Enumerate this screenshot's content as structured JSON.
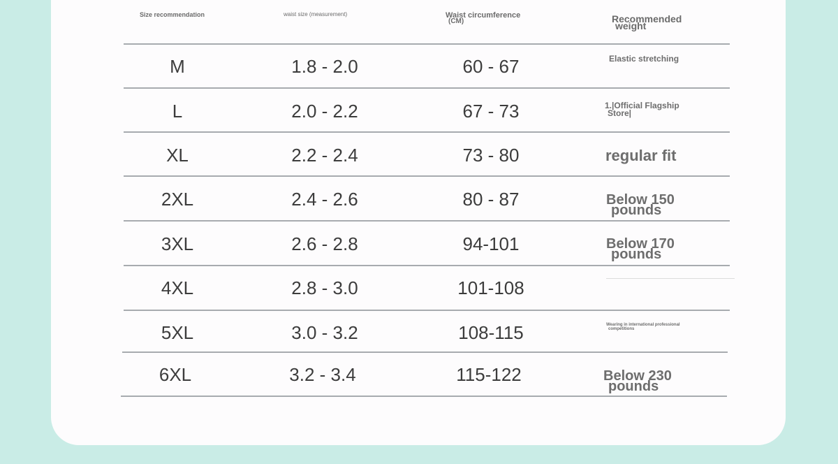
{
  "headers": {
    "size": "Size recommendation",
    "waist_measure": "waist size (measurement)",
    "circumference": "Waist circumference",
    "circumference_unit": "(CM)",
    "weight_line1": "Recommended",
    "weight_line2": "weight"
  },
  "rows": [
    {
      "size": "M",
      "waist": "1.8 - 2.0",
      "circ": "60 - 67"
    },
    {
      "size": "L",
      "waist": "2.0 - 2.2",
      "circ": "67 - 73"
    },
    {
      "size": "XL",
      "waist": "2.2 - 2.4",
      "circ": "73 - 80"
    },
    {
      "size": "2XL",
      "waist": "2.4 - 2.6",
      "circ": "80 - 87"
    },
    {
      "size": "3XL",
      "waist": "2.6 - 2.8",
      "circ": "94-101"
    },
    {
      "size": "4XL",
      "waist": "2.8 - 3.0",
      "circ": "101-108"
    },
    {
      "size": "5XL",
      "waist": "3.0 - 3.2",
      "circ": "108-115"
    },
    {
      "size": "6XL",
      "waist": "3.2 - 3.4",
      "circ": "115-122"
    }
  ],
  "notes": {
    "elastic": "Elastic stretching",
    "store_line1": "1.|Official Flagship",
    "store_line2": "Store|",
    "regular": "regular fit",
    "w150_line1": "Below 150",
    "w150_line2": "pounds",
    "w170_line1": "Below 170",
    "w170_line2": "pounds",
    "intl_line1": "Wearing in international professional",
    "intl_line2": "competitions",
    "w230_line1": "Below 230",
    "w230_line2": "pounds"
  }
}
